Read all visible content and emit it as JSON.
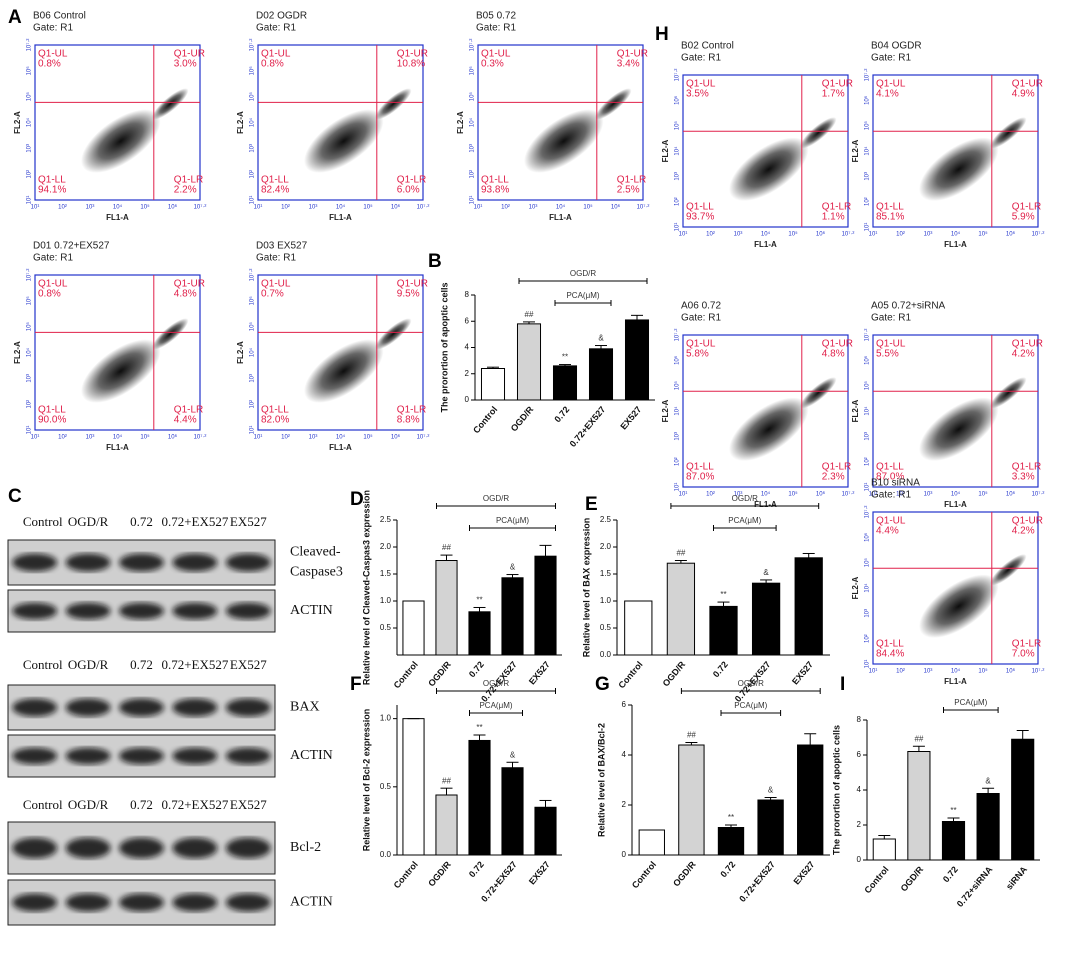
{
  "flow_figures": [
    {
      "panel": "A",
      "x_label": "FL1-A",
      "y_label": "FL2-A",
      "ticks": [
        "10¹",
        "10²",
        "10³",
        "10⁴",
        "10⁵",
        "10⁶",
        "10⁷·²"
      ],
      "plots": [
        {
          "title": "B06 Control",
          "gate": "Gate: R1",
          "UL": {
            "name": "Q1-UL",
            "value": "0.8%"
          },
          "UR": {
            "name": "Q1-UR",
            "value": "3.0%"
          },
          "LL": {
            "name": "Q1-LL",
            "value": "94.1%"
          },
          "LR": {
            "name": "Q1-LR",
            "value": "2.2%"
          }
        },
        {
          "title": "D02 OGDR",
          "gate": "Gate: R1",
          "UL": {
            "name": "Q1-UL",
            "value": "0.8%"
          },
          "UR": {
            "name": "Q1-UR",
            "value": "10.8%"
          },
          "LL": {
            "name": "Q1-LL",
            "value": "82.4%"
          },
          "LR": {
            "name": "Q1-LR",
            "value": "6.0%"
          }
        },
        {
          "title": "B05 0.72",
          "gate": "Gate: R1",
          "UL": {
            "name": "Q1-UL",
            "value": "0.3%"
          },
          "UR": {
            "name": "Q1-UR",
            "value": "3.4%"
          },
          "LL": {
            "name": "Q1-LL",
            "value": "93.8%"
          },
          "LR": {
            "name": "Q1-LR",
            "value": "2.5%"
          }
        },
        {
          "title": "D01 0.72+EX527",
          "gate": "Gate: R1",
          "UL": {
            "name": "Q1-UL",
            "value": "0.8%"
          },
          "UR": {
            "name": "Q1-UR",
            "value": "4.8%"
          },
          "LL": {
            "name": "Q1-LL",
            "value": "90.0%"
          },
          "LR": {
            "name": "Q1-LR",
            "value": "4.4%"
          }
        },
        {
          "title": "D03 EX527",
          "gate": "Gate: R1",
          "UL": {
            "name": "Q1-UL",
            "value": "0.7%"
          },
          "UR": {
            "name": "Q1-UR",
            "value": "9.5%"
          },
          "LL": {
            "name": "Q1-LL",
            "value": "82.0%"
          },
          "LR": {
            "name": "Q1-LR",
            "value": "8.8%"
          }
        }
      ]
    },
    {
      "panel": "H",
      "x_label": "FL1-A",
      "y_label": "FL2-A",
      "ticks": [
        "10¹",
        "10²",
        "10³",
        "10⁴",
        "10⁵",
        "10⁶",
        "10⁷·²"
      ],
      "plots": [
        {
          "title": "B02 Control",
          "gate": "Gate: R1",
          "UL": {
            "name": "Q1-UL",
            "value": "3.5%"
          },
          "UR": {
            "name": "Q1-UR",
            "value": "1.7%"
          },
          "LL": {
            "name": "Q1-LL",
            "value": "93.7%"
          },
          "LR": {
            "name": "Q1-LR",
            "value": "1.1%"
          }
        },
        {
          "title": "B04 OGDR",
          "gate": "Gate: R1",
          "UL": {
            "name": "Q1-UL",
            "value": "4.1%"
          },
          "UR": {
            "name": "Q1-UR",
            "value": "4.9%"
          },
          "LL": {
            "name": "Q1-LL",
            "value": "85.1%"
          },
          "LR": {
            "name": "Q1-LR",
            "value": "5.9%"
          }
        },
        {
          "title": "A06 0.72",
          "gate": "Gate: R1",
          "UL": {
            "name": "Q1-UL",
            "value": "5.8%"
          },
          "UR": {
            "name": "Q1-UR",
            "value": "4.8%"
          },
          "LL": {
            "name": "Q1-LL",
            "value": "87.0%"
          },
          "LR": {
            "name": "Q1-LR",
            "value": "2.3%"
          }
        },
        {
          "title": "A05 0.72+siRNA",
          "gate": "Gate: R1",
          "UL": {
            "name": "Q1-UL",
            "value": "5.5%"
          },
          "UR": {
            "name": "Q1-UR",
            "value": "4.2%"
          },
          "LL": {
            "name": "Q1-LL",
            "value": "87.0%"
          },
          "LR": {
            "name": "Q1-LR",
            "value": "3.3%"
          }
        },
        {
          "title": "B10 siRNA",
          "gate": "Gate: R1",
          "UL": {
            "name": "Q1-UL",
            "value": "4.4%"
          },
          "UR": {
            "name": "Q1-UR",
            "value": "4.2%"
          },
          "LL": {
            "name": "Q1-LL",
            "value": "84.4%"
          },
          "LR": {
            "name": "Q1-LR",
            "value": "7.0%"
          }
        }
      ]
    }
  ],
  "blots": {
    "panel": "C",
    "blocks": [
      {
        "lanes": [
          "Control",
          "OGD/R",
          "0.72",
          "0.72+EX527",
          "EX527"
        ],
        "bands": [
          [
            "Cleaved-",
            "Caspase3"
          ],
          [
            "ACTIN"
          ]
        ]
      },
      {
        "lanes": [
          "Control",
          "OGD/R",
          "0.72",
          "0.72+EX527",
          "EX527"
        ],
        "bands": [
          [
            "BAX"
          ],
          [
            "ACTIN"
          ]
        ]
      },
      {
        "lanes": [
          "Control",
          "OGD/R",
          "0.72",
          "0.72+EX527",
          "EX527"
        ],
        "bands": [
          [
            "Bcl-2"
          ],
          [
            "ACTIN"
          ]
        ]
      }
    ]
  },
  "chart_data": [
    {
      "type": "bar",
      "panel": "B",
      "ylabel": "The prorortion of apoptic cells",
      "categories": [
        "Control",
        "OGD/R",
        "0.72",
        "0.72+EX527",
        "EX527"
      ],
      "values": [
        2.4,
        5.8,
        2.6,
        3.9,
        6.1
      ],
      "errors": [
        0.1,
        0.15,
        0.1,
        0.25,
        0.35
      ],
      "colors": [
        "#ffffff",
        "#d3d3d3",
        "#000000",
        "#000000",
        "#000000"
      ],
      "bar_labels": [
        null,
        "##",
        "**",
        "&",
        null
      ],
      "ylim": [
        0,
        8
      ],
      "yticks": [
        0,
        2,
        4,
        6,
        8
      ],
      "brackets": [
        {
          "label": "OGD/R",
          "from": 1,
          "to": 4
        },
        {
          "label": "PCA(μM)",
          "from": 2,
          "to": 3
        }
      ]
    },
    {
      "type": "bar",
      "panel": "D",
      "ylabel": "Relative level of Cleaved-Caspas3 expression",
      "categories": [
        "Control",
        "OGD/R",
        "0.72",
        "0.72+EX527",
        "EX527"
      ],
      "values": [
        1.0,
        1.75,
        0.8,
        1.43,
        1.83
      ],
      "errors": [
        0,
        0.1,
        0.08,
        0.06,
        0.2
      ],
      "colors": [
        "#ffffff",
        "#d3d3d3",
        "#000000",
        "#000000",
        "#000000"
      ],
      "bar_labels": [
        null,
        "##",
        "**",
        "&",
        null
      ],
      "ylim": [
        0,
        2.5
      ],
      "yticks": [
        0.5,
        {
          "value": 1,
          "label": "1.0"
        },
        1.5,
        {
          "value": 2,
          "label": "2.0"
        },
        2.5
      ],
      "brackets": [
        {
          "label": "OGD/R",
          "from": 1,
          "to": 4
        },
        {
          "label": "PCA(μM)",
          "from": 2,
          "to": 4
        }
      ]
    },
    {
      "type": "bar",
      "panel": "E",
      "ylabel": "Relative level of BAX expression",
      "categories": [
        "Control",
        "OGD/R",
        "0.72",
        "0.72+EX527",
        "EX527"
      ],
      "values": [
        1.0,
        1.7,
        0.9,
        1.33,
        1.8
      ],
      "errors": [
        0,
        0.05,
        0.08,
        0.06,
        0.08
      ],
      "colors": [
        "#ffffff",
        "#d3d3d3",
        "#000000",
        "#000000",
        "#000000"
      ],
      "bar_labels": [
        null,
        "##",
        "**",
        "&",
        null
      ],
      "ylim": [
        0,
        2.5
      ],
      "yticks": [
        {
          "value": 0,
          "label": "0.0"
        },
        0.5,
        {
          "value": 1,
          "label": "1.0"
        },
        1.5,
        {
          "value": 2,
          "label": "2.0"
        },
        2.5
      ],
      "brackets": [
        {
          "label": "OGD/R",
          "from": 1,
          "to": 4
        },
        {
          "label": "PCA(μM)",
          "from": 2,
          "to": 3
        }
      ]
    },
    {
      "type": "bar",
      "panel": "F",
      "ylabel": "Relative level of Bcl-2 expression",
      "categories": [
        "Control",
        "OGD/R",
        "0.72",
        "0.72+EX527",
        "EX527"
      ],
      "values": [
        1.0,
        0.44,
        0.84,
        0.64,
        0.35
      ],
      "errors": [
        0,
        0.05,
        0.04,
        0.04,
        0.05
      ],
      "colors": [
        "#ffffff",
        "#d3d3d3",
        "#000000",
        "#000000",
        "#000000"
      ],
      "bar_labels": [
        null,
        "##",
        "**",
        "&",
        null
      ],
      "ylim": [
        0,
        1.1
      ],
      "yticks": [
        {
          "value": 0,
          "label": "0.0"
        },
        0.5,
        {
          "value": 1,
          "label": "1.0"
        }
      ],
      "brackets": [
        {
          "label": "OGD/R",
          "from": 1,
          "to": 4
        },
        {
          "label": "PCA(μM)",
          "from": 2,
          "to": 3
        }
      ]
    },
    {
      "type": "bar",
      "panel": "G",
      "ylabel": "Relative level of BAX/Bcl-2",
      "categories": [
        "Control",
        "OGD/R",
        "0.72",
        "0.72+EX527",
        "EX527"
      ],
      "values": [
        1.0,
        4.4,
        1.1,
        2.2,
        4.4
      ],
      "errors": [
        0,
        0.1,
        0.1,
        0.1,
        0.45
      ],
      "colors": [
        "#ffffff",
        "#d3d3d3",
        "#000000",
        "#000000",
        "#000000"
      ],
      "bar_labels": [
        null,
        "##",
        "**",
        "&",
        null
      ],
      "ylim": [
        0,
        6
      ],
      "yticks": [
        0,
        2,
        4,
        6
      ],
      "brackets": [
        {
          "label": "OGD/R",
          "from": 1,
          "to": 4
        },
        {
          "label": "PCA(μM)",
          "from": 2,
          "to": 3
        }
      ]
    },
    {
      "type": "bar",
      "panel": "I",
      "ylabel": "The prorortion of apoptic cells",
      "categories": [
        "Control",
        "OGD/R",
        "0.72",
        "0.72+siRNA",
        "siRNA"
      ],
      "values": [
        1.2,
        6.2,
        2.2,
        3.8,
        6.9
      ],
      "errors": [
        0.2,
        0.3,
        0.2,
        0.3,
        0.5
      ],
      "colors": [
        "#ffffff",
        "#d3d3d3",
        "#000000",
        "#000000",
        "#000000"
      ],
      "bar_labels": [
        null,
        "##",
        "**",
        "&",
        null
      ],
      "ylim": [
        0,
        8
      ],
      "yticks": [
        0,
        2,
        4,
        6,
        8
      ],
      "brackets": [
        {
          "label": "PCA(μM)",
          "from": 2,
          "to": 3
        }
      ]
    }
  ]
}
